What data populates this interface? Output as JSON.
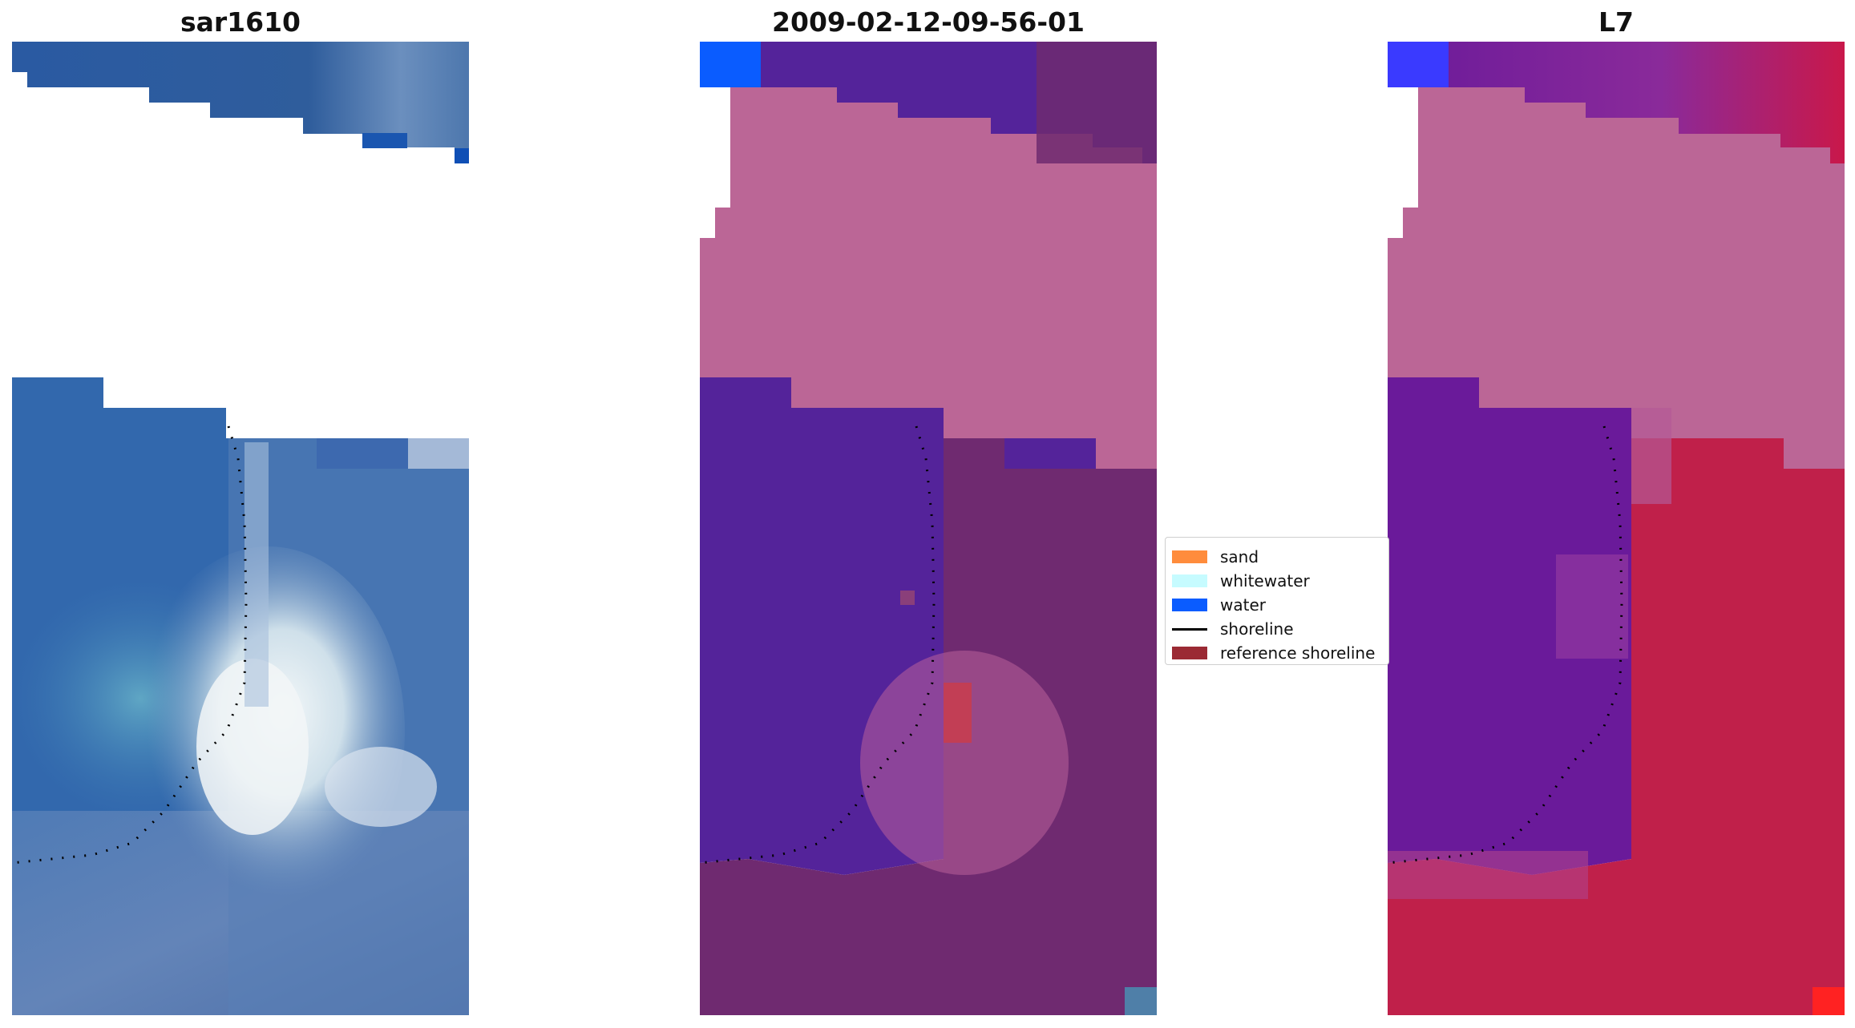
{
  "titles": {
    "left": "sar1610",
    "middle": "2009-02-12-09-56-01",
    "right": "L7"
  },
  "legend": {
    "items": [
      {
        "label": "sand",
        "color": "#ff8c3c",
        "kind": "patch"
      },
      {
        "label": "whitewater",
        "color": "#c6fbff",
        "kind": "patch"
      },
      {
        "label": "water",
        "color": "#0a5cff",
        "kind": "patch"
      },
      {
        "label": "shoreline",
        "color": "#000000",
        "kind": "line"
      },
      {
        "label": "reference shoreline",
        "color": "#9b2a34",
        "kind": "patch"
      }
    ]
  },
  "colors": {
    "rgb_water": "#2f62a8",
    "rgb_sand_white": "#e8f0f4",
    "class_cloud": "#bb6696",
    "class_water": "#54239a",
    "class_land": "#6f2a70",
    "false_land": "#c0204a",
    "false_water": "#6a1a9a"
  }
}
